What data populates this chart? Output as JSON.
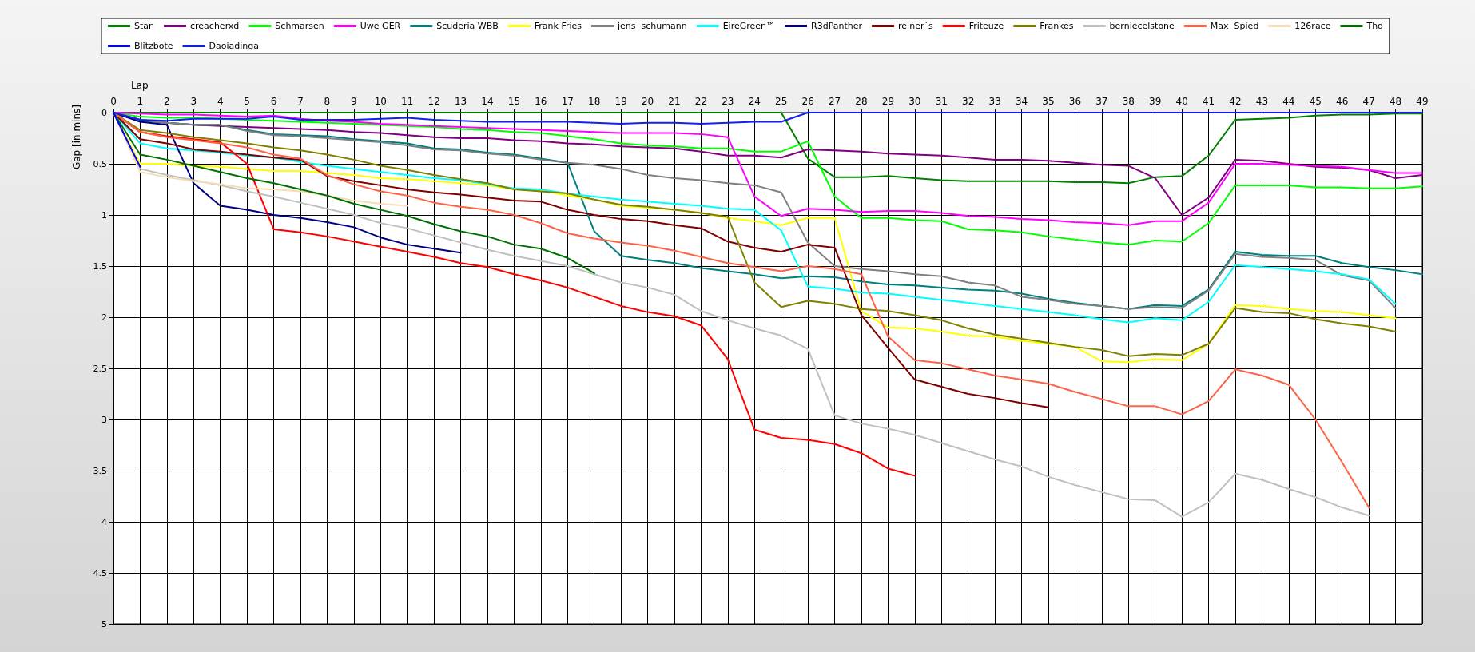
{
  "chart_data": {
    "type": "line",
    "xlabel": "Lap",
    "ylabel": "Gap [in mins]",
    "x": [
      0,
      1,
      2,
      3,
      4,
      5,
      6,
      7,
      8,
      9,
      10,
      11,
      12,
      13,
      14,
      15,
      16,
      17,
      18,
      19,
      20,
      21,
      22,
      23,
      24,
      25,
      26,
      27,
      28,
      29,
      30,
      31,
      32,
      33,
      34,
      35,
      36,
      37,
      38,
      39,
      40,
      41,
      42,
      43,
      44,
      45,
      46,
      47,
      48,
      49
    ],
    "xlim": [
      0,
      49
    ],
    "xticks": [
      0,
      1,
      2,
      3,
      4,
      5,
      6,
      7,
      8,
      9,
      10,
      11,
      12,
      13,
      14,
      15,
      16,
      17,
      18,
      19,
      20,
      21,
      22,
      23,
      24,
      25,
      26,
      27,
      28,
      29,
      30,
      31,
      32,
      33,
      34,
      35,
      36,
      37,
      38,
      39,
      40,
      41,
      42,
      43,
      44,
      45,
      46,
      47,
      48,
      49
    ],
    "ylim": [
      5,
      0
    ],
    "yticks": [
      0,
      0.5,
      1,
      1.5,
      2,
      2.5,
      3,
      3.5,
      4,
      4.5,
      5
    ],
    "grid": true,
    "legend": "top",
    "marker": "none",
    "line_style": "solid",
    "series": [
      {
        "name": "Stan",
        "color": "#008000",
        "values": [
          0,
          0,
          0,
          0,
          0,
          0,
          0,
          0,
          0,
          0,
          0,
          0,
          0,
          0,
          0,
          0,
          0,
          0,
          0,
          0,
          0,
          0,
          0,
          0,
          0,
          0,
          0.45,
          0.63,
          0.63,
          0.62,
          0.64,
          0.66,
          0.67,
          0.67,
          0.67,
          0.67,
          0.68,
          0.68,
          0.69,
          0.63,
          0.62,
          0.42,
          0.07,
          0.06,
          0.05,
          0.03,
          0.02,
          0.02,
          0.01,
          0.01
        ]
      },
      {
        "name": "creacherxd",
        "color": "#800080",
        "values": [
          0,
          0.07,
          0.1,
          0.12,
          0.13,
          0.14,
          0.15,
          0.16,
          0.17,
          0.19,
          0.2,
          0.22,
          0.24,
          0.25,
          0.25,
          0.27,
          0.28,
          0.3,
          0.31,
          0.33,
          0.34,
          0.35,
          0.38,
          0.42,
          0.42,
          0.44,
          0.36,
          0.37,
          0.38,
          0.4,
          0.41,
          0.42,
          0.44,
          0.46,
          0.46,
          0.47,
          0.49,
          0.51,
          0.52,
          0.64,
          1.0,
          0.83,
          0.46,
          0.47,
          0.5,
          0.53,
          0.54,
          0.56,
          0.64,
          0.61
        ]
      },
      {
        "name": "Schmarsen",
        "color": "#00ff00",
        "values": [
          0,
          0.04,
          0.05,
          0.05,
          0.06,
          0.07,
          0.08,
          0.09,
          0.1,
          0.11,
          0.12,
          0.13,
          0.14,
          0.16,
          0.17,
          0.19,
          0.2,
          0.23,
          0.26,
          0.3,
          0.32,
          0.33,
          0.35,
          0.35,
          0.38,
          0.38,
          0.28,
          0.82,
          1.03,
          1.03,
          1.05,
          1.06,
          1.14,
          1.15,
          1.17,
          1.21,
          1.24,
          1.27,
          1.29,
          1.25,
          1.26,
          1.08,
          0.71,
          0.71,
          0.71,
          0.73,
          0.73,
          0.74,
          0.74,
          0.72
        ]
      },
      {
        "name": "Uwe GER",
        "color": "#ff00ff",
        "values": [
          0,
          0.01,
          0.02,
          0.02,
          0.03,
          0.04,
          0.03,
          0.06,
          0.08,
          0.09,
          0.11,
          0.12,
          0.13,
          0.14,
          0.15,
          0.16,
          0.17,
          0.18,
          0.19,
          0.2,
          0.2,
          0.2,
          0.21,
          0.24,
          0.82,
          1.01,
          0.94,
          0.95,
          0.97,
          0.96,
          0.96,
          0.98,
          1.01,
          1.02,
          1.04,
          1.05,
          1.07,
          1.08,
          1.1,
          1.06,
          1.06,
          0.88,
          0.5,
          0.5,
          0.51,
          0.52,
          0.53,
          0.56,
          0.59,
          0.59
        ]
      },
      {
        "name": "Scuderia WBB",
        "color": "#008080",
        "values": [
          0,
          0.08,
          0.1,
          0.12,
          0.12,
          0.17,
          0.21,
          0.22,
          0.23,
          0.26,
          0.28,
          0.3,
          0.35,
          0.36,
          0.39,
          0.41,
          0.45,
          0.49,
          1.16,
          1.4,
          1.44,
          1.47,
          1.52,
          1.55,
          1.58,
          1.62,
          1.6,
          1.61,
          1.65,
          1.68,
          1.69,
          1.71,
          1.73,
          1.74,
          1.77,
          1.82,
          1.86,
          1.89,
          1.92,
          1.88,
          1.89,
          1.73,
          1.36,
          1.39,
          1.4,
          1.4,
          1.47,
          1.51,
          1.54,
          1.58
        ]
      },
      {
        "name": "Frank Fries",
        "color": "#ffff00",
        "values": [
          0,
          0.5,
          0.5,
          0.52,
          0.53,
          0.55,
          0.57,
          0.57,
          0.59,
          0.61,
          0.64,
          0.65,
          0.67,
          0.69,
          0.71,
          0.75,
          0.76,
          0.81,
          0.85,
          0.91,
          0.93,
          0.95,
          0.98,
          1.03,
          1.06,
          1.1,
          1.03,
          1.03,
          1.94,
          2.1,
          2.11,
          2.14,
          2.18,
          2.19,
          2.23,
          2.26,
          2.29,
          2.43,
          2.44,
          2.41,
          2.42,
          2.26,
          1.88,
          1.89,
          1.92,
          1.94,
          1.95,
          1.98,
          2.01,
          null
        ]
      },
      {
        "name": "jens  schumann",
        "color": "#808080",
        "values": [
          0,
          0.07,
          0.1,
          0.12,
          0.12,
          0.18,
          0.22,
          0.23,
          0.25,
          0.27,
          0.29,
          0.32,
          0.36,
          0.37,
          0.4,
          0.42,
          0.46,
          0.49,
          0.51,
          0.55,
          0.61,
          0.64,
          0.66,
          0.69,
          0.71,
          0.78,
          1.27,
          1.5,
          1.53,
          1.55,
          1.58,
          1.6,
          1.66,
          1.69,
          1.8,
          1.83,
          1.87,
          1.89,
          1.92,
          1.9,
          1.91,
          1.74,
          1.38,
          1.41,
          1.42,
          1.44,
          1.59,
          1.64,
          1.91,
          null
        ]
      },
      {
        "name": "EireGreen™",
        "color": "#00ffff",
        "values": [
          0,
          0.3,
          0.35,
          0.37,
          0.39,
          0.42,
          0.44,
          0.48,
          0.52,
          0.55,
          0.58,
          0.61,
          0.64,
          0.66,
          0.7,
          0.74,
          0.75,
          0.79,
          0.82,
          0.85,
          0.87,
          0.89,
          0.91,
          0.94,
          0.95,
          1.15,
          1.7,
          1.72,
          1.76,
          1.77,
          1.8,
          1.83,
          1.86,
          1.89,
          1.92,
          1.95,
          1.98,
          2.02,
          2.05,
          2.01,
          2.03,
          1.85,
          1.49,
          1.51,
          1.53,
          1.55,
          1.58,
          1.63,
          1.87,
          null
        ]
      },
      {
        "name": "R3dPanther",
        "color": "#000080",
        "values": [
          0,
          0.09,
          0.12,
          0.69,
          0.91,
          0.95,
          1.0,
          1.03,
          1.07,
          1.12,
          1.22,
          1.29,
          1.33,
          1.37,
          null,
          null,
          null,
          null,
          null,
          null,
          null,
          null,
          null,
          null,
          null,
          null,
          null,
          null,
          null,
          null,
          null,
          null,
          null,
          null,
          null,
          null,
          null,
          null,
          null,
          null,
          null,
          null,
          null,
          null,
          null,
          null,
          null,
          null,
          null,
          null
        ]
      },
      {
        "name": "reiner`s",
        "color": "#800000",
        "values": [
          0,
          0.26,
          0.3,
          0.36,
          0.38,
          0.41,
          0.44,
          0.46,
          0.62,
          0.67,
          0.71,
          0.75,
          0.78,
          0.8,
          0.83,
          0.86,
          0.87,
          0.95,
          1.0,
          1.04,
          1.06,
          1.1,
          1.13,
          1.26,
          1.32,
          1.36,
          1.29,
          1.32,
          1.98,
          2.3,
          2.61,
          2.68,
          2.75,
          2.79,
          2.84,
          2.88,
          null,
          null,
          null,
          null,
          null,
          null,
          null,
          null,
          null,
          null,
          null,
          null,
          null,
          null
        ]
      },
      {
        "name": "Friteuze",
        "color": "#ff0000",
        "values": [
          0,
          0.19,
          0.23,
          0.26,
          0.29,
          0.5,
          1.14,
          1.17,
          1.21,
          1.26,
          1.31,
          1.36,
          1.41,
          1.47,
          1.51,
          1.58,
          1.64,
          1.71,
          1.8,
          1.89,
          1.95,
          1.99,
          2.08,
          2.41,
          3.1,
          3.18,
          3.2,
          3.24,
          3.33,
          3.48,
          3.55,
          null,
          null,
          null,
          null,
          null,
          null,
          null,
          null,
          null,
          null,
          null,
          null,
          null,
          null,
          null,
          null,
          null,
          null,
          null
        ]
      },
      {
        "name": "Frankes",
        "color": "#808000",
        "values": [
          0,
          0.17,
          0.2,
          0.24,
          0.27,
          0.3,
          0.34,
          0.37,
          0.41,
          0.46,
          0.52,
          0.56,
          0.61,
          0.65,
          0.69,
          0.75,
          0.77,
          0.79,
          0.85,
          0.9,
          0.92,
          0.95,
          0.98,
          1.02,
          1.66,
          1.9,
          1.84,
          1.87,
          1.92,
          1.94,
          1.98,
          2.03,
          2.11,
          2.17,
          2.21,
          2.25,
          2.29,
          2.32,
          2.38,
          2.36,
          2.37,
          2.26,
          1.91,
          1.95,
          1.96,
          2.02,
          2.06,
          2.09,
          2.14,
          null
        ]
      },
      {
        "name": "berniecelstone",
        "color": "#c0c0c0",
        "values": [
          0,
          0.55,
          0.61,
          0.66,
          0.71,
          0.77,
          0.82,
          0.88,
          0.94,
          1.0,
          1.08,
          1.13,
          1.2,
          1.27,
          1.34,
          1.4,
          1.45,
          1.5,
          1.58,
          1.66,
          1.71,
          1.78,
          1.94,
          2.03,
          2.11,
          2.18,
          2.31,
          2.96,
          3.04,
          3.09,
          3.15,
          3.23,
          3.31,
          3.39,
          3.46,
          3.56,
          3.64,
          3.71,
          3.78,
          3.79,
          3.95,
          3.81,
          3.53,
          3.59,
          3.68,
          3.76,
          3.86,
          3.94,
          null,
          null
        ]
      },
      {
        "name": "Max  Spied",
        "color": "#ff6347",
        "values": [
          0,
          0.19,
          0.24,
          0.27,
          0.3,
          0.34,
          0.41,
          0.45,
          0.61,
          0.7,
          0.77,
          0.81,
          0.88,
          0.92,
          0.95,
          1.0,
          1.08,
          1.18,
          1.23,
          1.27,
          1.3,
          1.35,
          1.41,
          1.47,
          1.51,
          1.55,
          1.5,
          1.53,
          1.58,
          2.19,
          2.42,
          2.45,
          2.51,
          2.57,
          2.61,
          2.65,
          2.73,
          2.8,
          2.87,
          2.87,
          2.95,
          2.82,
          2.51,
          2.57,
          2.66,
          3.0,
          3.42,
          3.86,
          null,
          null
        ]
      },
      {
        "name": "126race",
        "color": "#f5deb3",
        "values": [
          0,
          0.58,
          0.63,
          0.67,
          0.7,
          0.74,
          0.75,
          0.77,
          0.81,
          0.86,
          0.89,
          0.91,
          null,
          null,
          null,
          null,
          null,
          null,
          null,
          null,
          null,
          null,
          null,
          null,
          null,
          null,
          null,
          null,
          null,
          null,
          null,
          null,
          null,
          null,
          null,
          null,
          null,
          null,
          null,
          null,
          null,
          null,
          null,
          null,
          null,
          null,
          null,
          null,
          null,
          null
        ]
      },
      {
        "name": "Tho",
        "color": "#007000",
        "values": [
          0,
          0.41,
          0.46,
          0.52,
          0.58,
          0.64,
          0.69,
          0.75,
          0.81,
          0.89,
          0.95,
          1.01,
          1.09,
          1.16,
          1.21,
          1.29,
          1.33,
          1.42,
          1.57,
          null,
          null,
          null,
          null,
          null,
          null,
          null,
          null,
          null,
          null,
          null,
          null,
          null,
          null,
          null,
          null,
          null,
          null,
          null,
          null,
          null,
          null,
          null,
          null,
          null,
          null,
          null,
          null,
          null,
          null,
          null
        ]
      },
      {
        "name": "Blitzbote",
        "color": "#0000ff",
        "values": [
          0,
          0.53,
          null,
          null,
          null,
          null,
          null,
          null,
          null,
          null,
          null,
          null,
          null,
          null,
          null,
          null,
          null,
          null,
          null,
          null,
          null,
          null,
          null,
          null,
          null,
          null,
          null,
          null,
          null,
          null,
          null,
          null,
          null,
          null,
          null,
          null,
          null,
          null,
          null,
          null,
          null,
          null,
          null,
          null,
          null,
          null,
          null,
          null,
          null,
          null
        ]
      },
      {
        "name": "Daoiadinga",
        "color": "#1020ee",
        "values": [
          0,
          0.07,
          0.08,
          0.06,
          0.06,
          0.06,
          0.04,
          0.07,
          0.07,
          0.07,
          0.06,
          0.05,
          0.07,
          0.08,
          0.09,
          0.09,
          0.09,
          0.09,
          0.1,
          0.11,
          0.1,
          0.1,
          0.11,
          0.1,
          0.09,
          0.09,
          0,
          0,
          0,
          0,
          0,
          0,
          0,
          0,
          0,
          0,
          0,
          0,
          0,
          0,
          0,
          0,
          0,
          0,
          0,
          0,
          0,
          0,
          0,
          0
        ]
      }
    ]
  }
}
